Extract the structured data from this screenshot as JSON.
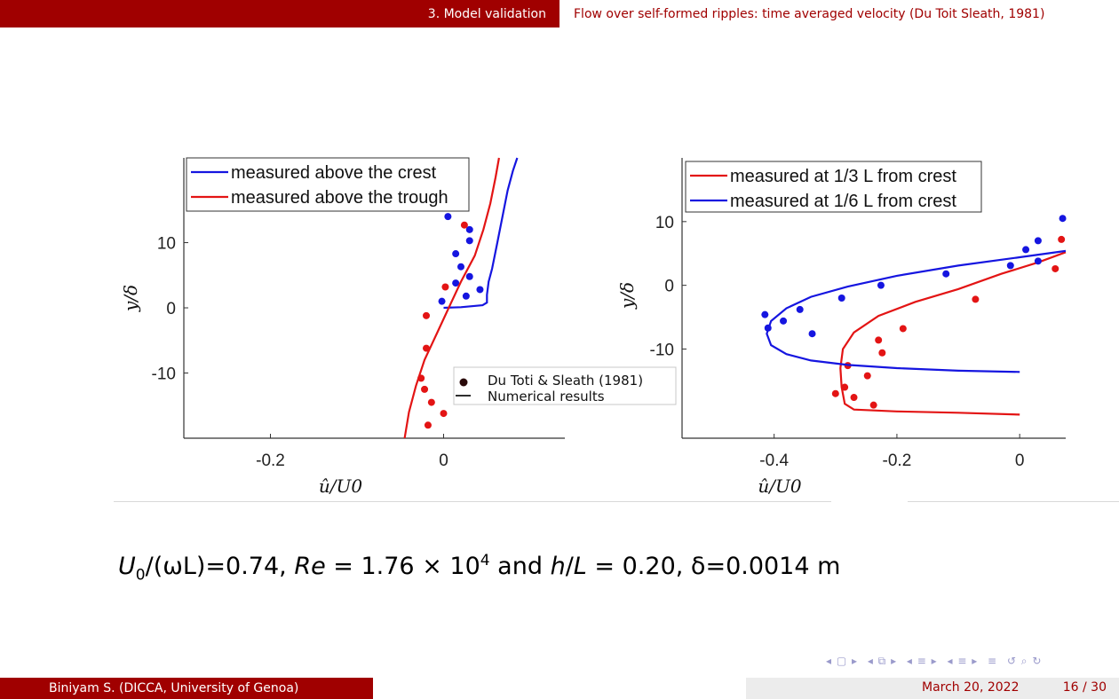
{
  "header": {
    "section": "3. Model validation",
    "subsection": "Flow over self-formed ripples: time averaged velocity (Du Toit  Sleath, 1981)"
  },
  "footer": {
    "author": "Biniyam S.  (DICCA, University of Genoa)",
    "date": "March 20, 2022",
    "page": "16 / 30"
  },
  "nav_icons": [
    "first-page-icon",
    "prev-frame-icon",
    "prev-section-icon",
    "next-section-icon",
    "align-icon",
    "search-icon"
  ],
  "parameters": {
    "u0_label": "U",
    "u0_sub": "0",
    "u0_expr": "/(ωL)=0.74, ",
    "re_label": "Re",
    "re_expr": " = 1.76 × 10",
    "re_exp": "4",
    "and_text": " and ",
    "hl_label": "h",
    "hl_expr": "/",
    "hl_label2": "L",
    "hl_value": " = 0.20, ",
    "delta_expr": "δ=0.0014 m"
  },
  "combined_legend": {
    "markers_label": "Du Toti & Sleath (1981)",
    "lines_label": "Numerical results"
  },
  "colors": {
    "blue": "#1515e0",
    "red": "#e31414",
    "accent": "#a00000"
  },
  "chart_data": [
    {
      "type": "line",
      "xlabel": "û/U0",
      "ylabel": "y/δ",
      "xlim": [
        -0.3,
        0.14
      ],
      "ylim": [
        -20,
        23
      ],
      "xticks": [
        -0.2,
        0
      ],
      "xticklabels": [
        "-0.2",
        "0"
      ],
      "yticks": [
        -10,
        0,
        10
      ],
      "yticklabels": [
        "-10",
        "0",
        "10"
      ],
      "legend_position": "top-left",
      "series": [
        {
          "name": "measured above the crest",
          "color": "#1515e0",
          "line": [
            [
              0,
              0
            ],
            [
              0.02,
              0.1
            ],
            [
              0.045,
              0.4
            ],
            [
              0.05,
              0.8
            ],
            [
              0.05,
              2
            ],
            [
              0.052,
              4
            ],
            [
              0.056,
              6
            ],
            [
              0.062,
              10
            ],
            [
              0.068,
              14
            ],
            [
              0.074,
              18
            ],
            [
              0.08,
              21
            ],
            [
              0.085,
              23
            ]
          ],
          "points": [
            [
              0.005,
              14
            ],
            [
              0.03,
              12
            ],
            [
              0.03,
              10.3
            ],
            [
              0.014,
              8.3
            ],
            [
              0.02,
              6.3
            ],
            [
              0.03,
              4.8
            ],
            [
              0.014,
              3.8
            ],
            [
              0.042,
              2.8
            ],
            [
              0.026,
              1.8
            ],
            [
              -0.002,
              1
            ]
          ]
        },
        {
          "name": "measured above the trough",
          "color": "#e31414",
          "line": [
            [
              -0.045,
              -20
            ],
            [
              -0.04,
              -16
            ],
            [
              -0.032,
              -12
            ],
            [
              -0.022,
              -8
            ],
            [
              -0.008,
              -4
            ],
            [
              0.006,
              0
            ],
            [
              0.02,
              4
            ],
            [
              0.036,
              8
            ],
            [
              0.046,
              12
            ],
            [
              0.054,
              16
            ],
            [
              0.06,
              20
            ],
            [
              0.064,
              23
            ]
          ],
          "points": [
            [
              0.024,
              12.7
            ],
            [
              0.002,
              3.2
            ],
            [
              -0.02,
              -1.2
            ],
            [
              -0.02,
              -6.2
            ],
            [
              -0.026,
              -10.8
            ],
            [
              -0.022,
              -12.5
            ],
            [
              -0.014,
              -14.5
            ],
            [
              0,
              -16.2
            ],
            [
              -0.018,
              -18
            ]
          ]
        }
      ]
    },
    {
      "type": "line",
      "xlabel": "û/U0",
      "ylabel": "y/δ",
      "xlim": [
        -0.55,
        0.075
      ],
      "ylim": [
        -24,
        20
      ],
      "xticks": [
        -0.4,
        -0.2,
        0
      ],
      "xticklabels": [
        "-0.4",
        "-0.2",
        "0"
      ],
      "yticks": [
        -10,
        0,
        10
      ],
      "yticklabels": [
        "-10",
        "0",
        "10"
      ],
      "legend_position": "top-right",
      "series": [
        {
          "name": "measured at 1/3 L from crest",
          "color": "#e31414",
          "line": [
            [
              0.075,
              5.2
            ],
            [
              0.03,
              3.6
            ],
            [
              -0.03,
              1.8
            ],
            [
              -0.1,
              -0.6
            ],
            [
              -0.17,
              -2.6
            ],
            [
              -0.23,
              -4.8
            ],
            [
              -0.27,
              -7.4
            ],
            [
              -0.288,
              -10
            ],
            [
              -0.292,
              -13
            ],
            [
              -0.29,
              -16
            ],
            [
              -0.285,
              -18.6
            ],
            [
              -0.27,
              -19.5
            ],
            [
              -0.2,
              -19.8
            ],
            [
              -0.1,
              -20
            ],
            [
              0,
              -20.3
            ]
          ],
          "points": [
            [
              0.068,
              7.2
            ],
            [
              0.058,
              2.6
            ],
            [
              -0.072,
              -2.2
            ],
            [
              -0.19,
              -6.8
            ],
            [
              -0.23,
              -8.6
            ],
            [
              -0.224,
              -10.6
            ],
            [
              -0.28,
              -12.6
            ],
            [
              -0.248,
              -14.2
            ],
            [
              -0.3,
              -17
            ],
            [
              -0.285,
              -16
            ],
            [
              -0.27,
              -17.6
            ],
            [
              -0.238,
              -18.8
            ]
          ]
        },
        {
          "name": "measured at 1/6 L from crest",
          "color": "#1515e0",
          "line": [
            [
              0.075,
              5.4
            ],
            [
              0,
              4.4
            ],
            [
              -0.1,
              3.1
            ],
            [
              -0.2,
              1.5
            ],
            [
              -0.28,
              -0.2
            ],
            [
              -0.34,
              -1.8
            ],
            [
              -0.38,
              -3.6
            ],
            [
              -0.405,
              -5.6
            ],
            [
              -0.412,
              -7.6
            ],
            [
              -0.405,
              -9.4
            ],
            [
              -0.38,
              -10.8
            ],
            [
              -0.34,
              -11.8
            ],
            [
              -0.28,
              -12.5
            ],
            [
              -0.2,
              -13
            ],
            [
              -0.1,
              -13.4
            ],
            [
              0,
              -13.6
            ]
          ],
          "points": [
            [
              0.07,
              10.5
            ],
            [
              0.03,
              7
            ],
            [
              0.01,
              5.6
            ],
            [
              0.03,
              3.8
            ],
            [
              -0.015,
              3.1
            ],
            [
              -0.12,
              1.8
            ],
            [
              -0.226,
              0
            ],
            [
              -0.29,
              -2
            ],
            [
              -0.358,
              -3.8
            ],
            [
              -0.385,
              -5.6
            ],
            [
              -0.415,
              -4.6
            ],
            [
              -0.41,
              -6.7
            ],
            [
              -0.338,
              -7.6
            ]
          ]
        }
      ]
    }
  ]
}
